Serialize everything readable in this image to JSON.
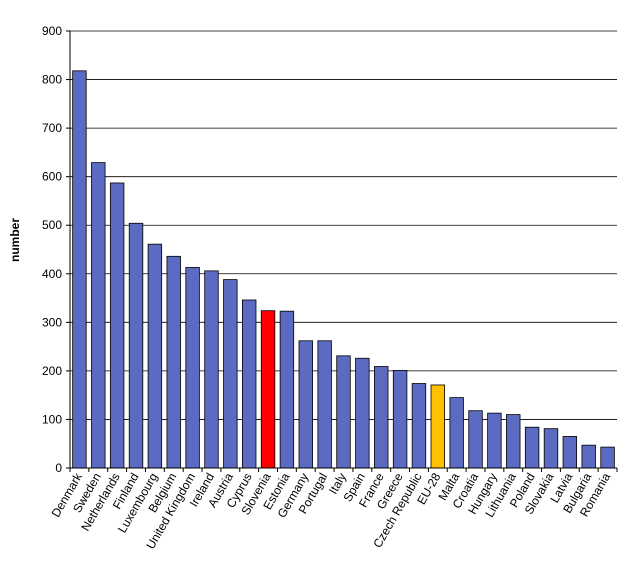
{
  "chart_data": {
    "type": "bar",
    "title": "",
    "xlabel": "",
    "ylabel": "number",
    "ylim": [
      0,
      900
    ],
    "yticks": [
      0,
      100,
      200,
      300,
      400,
      500,
      600,
      700,
      800,
      900
    ],
    "grid": true,
    "legend": "none",
    "categories": [
      "Denmark",
      "Sweden",
      "Netherlands",
      "Finland",
      "Luxembourg",
      "Belgium",
      "United Kingdom",
      "Ireland",
      "Austria",
      "Cyprus",
      "Slovenia",
      "Estonia",
      "Germany",
      "Portugal",
      "Italy",
      "Spain",
      "France",
      "Greece",
      "Czech Republic",
      "EU-28",
      "Malta",
      "Croatia",
      "Hungary",
      "Lithuania",
      "Poland",
      "Slovakia",
      "Latvia",
      "Bulgaria",
      "Romania"
    ],
    "values": [
      818,
      629,
      587,
      504,
      461,
      436,
      413,
      406,
      388,
      346,
      324,
      323,
      262,
      262,
      231,
      226,
      209,
      201,
      174,
      171,
      145,
      118,
      113,
      110,
      84,
      81,
      65,
      47,
      43
    ],
    "colors": {
      "default": "#5B6BC2",
      "highlights": {
        "Slovenia": "#FF0000",
        "EU-28": "#FFC000"
      }
    }
  }
}
